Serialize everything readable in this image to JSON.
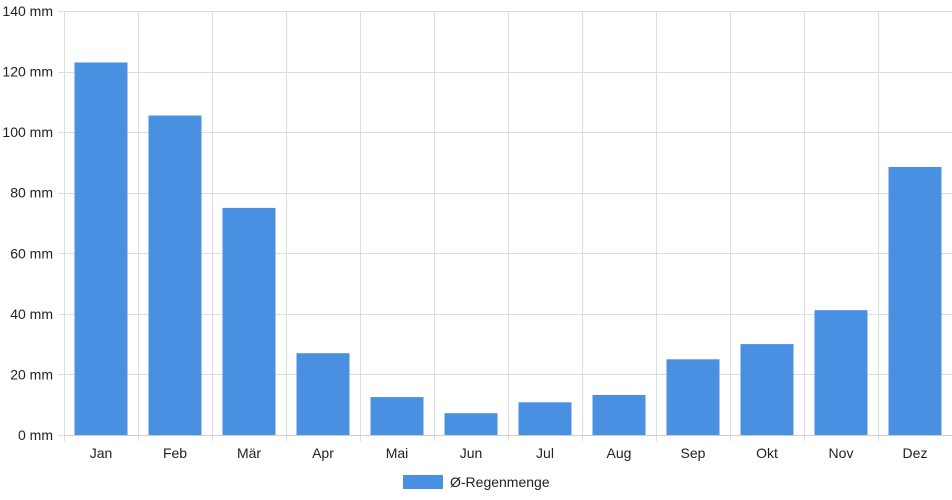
{
  "chart_data": {
    "type": "bar",
    "categories": [
      "Jan",
      "Feb",
      "Mär",
      "Apr",
      "Mai",
      "Jun",
      "Jul",
      "Aug",
      "Sep",
      "Okt",
      "Nov",
      "Dez"
    ],
    "series": [
      {
        "name": "Ø-Regenmenge",
        "values": [
          123,
          105.5,
          75,
          27,
          12.5,
          7.2,
          10.8,
          13.2,
          25,
          30,
          41.2,
          88.5
        ],
        "color": "#4a90e2"
      }
    ],
    "y_unit": "mm",
    "ylim": [
      0,
      140
    ],
    "y_ticks": [
      0,
      20,
      40,
      60,
      80,
      100,
      120,
      140
    ],
    "y_tick_labels": [
      "0 mm",
      "20 mm",
      "40 mm",
      "60 mm",
      "80 mm",
      "100 mm",
      "120 mm",
      "140 mm"
    ],
    "grid": true,
    "legend_position": "bottom-center",
    "gridline_color": "#dddddd"
  }
}
